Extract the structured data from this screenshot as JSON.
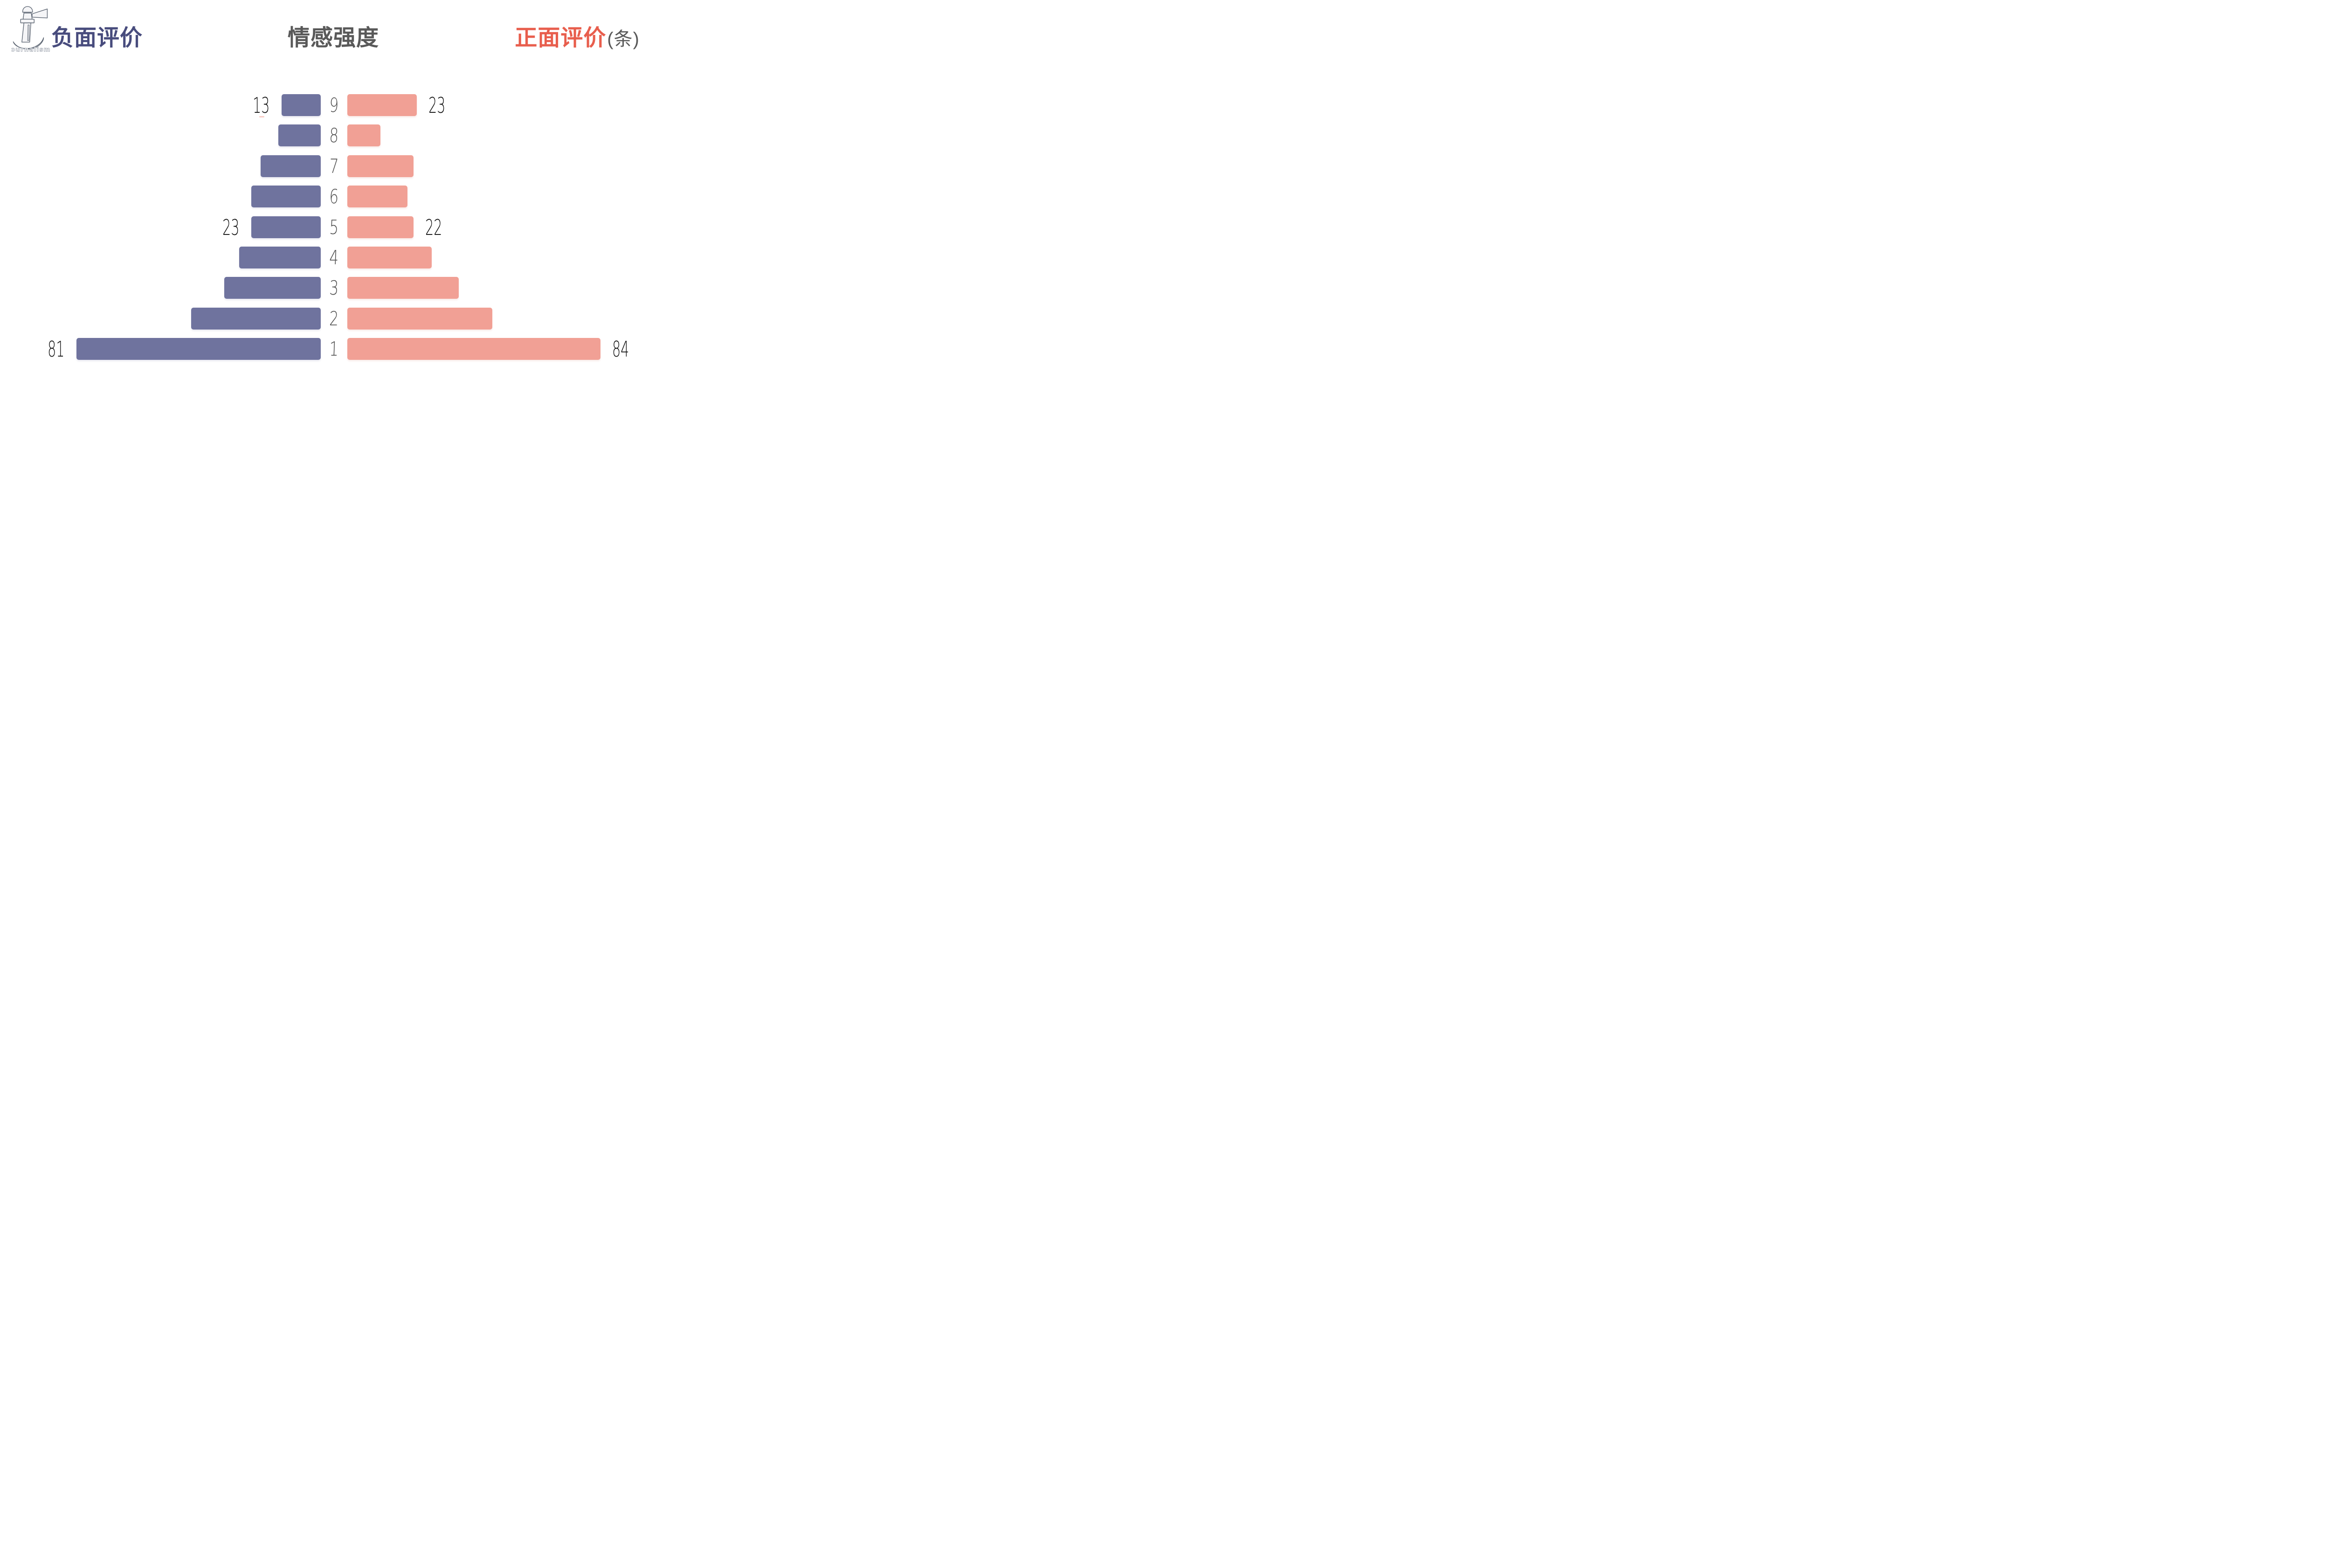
{
  "header": {
    "logo_text": "Journalism",
    "left_title": "负面评价",
    "center_title": "情感强度",
    "right_title": "正面评价",
    "right_title_unit": "(条)"
  },
  "colors": {
    "negative_bar": "#6f739e",
    "positive_bar": "#f1a095",
    "negative_title": "#484c7d",
    "positive_title": "#e85e4d",
    "center_title": "#595959",
    "level_digit": "#4f4f4f",
    "value_label": "#111111",
    "logo_outline": "#5d6673",
    "background": "#ffffff",
    "artifact_pink": "#f9cdc6"
  },
  "chart_data": {
    "type": "bar",
    "variant": "diverging-horizontal-pyramid",
    "title_center": "情感强度",
    "unit": "条",
    "categories": [
      "9",
      "8",
      "7",
      "6",
      "5",
      "4",
      "3",
      "2",
      "1"
    ],
    "series": [
      {
        "name": "负面评价",
        "side": "left",
        "color": "#6f739e",
        "values": [
          13,
          14,
          20,
          23,
          23,
          27,
          32,
          43,
          81
        ],
        "labels": [
          "13",
          "",
          "",
          "",
          "23",
          "",
          "",
          "",
          "81"
        ]
      },
      {
        "name": "正面评价",
        "side": "right",
        "color": "#f1a095",
        "values": [
          23,
          11,
          22,
          20,
          22,
          28,
          37,
          48,
          84
        ],
        "labels": [
          "23",
          "",
          "",
          "",
          "22",
          "",
          "",
          "",
          "84"
        ]
      }
    ],
    "axis_max": 84,
    "grid": false,
    "legend_position": "top-as-titles",
    "note": "only levels 9, 5 and 1 carry printed value labels; other values estimated from bar widths"
  }
}
